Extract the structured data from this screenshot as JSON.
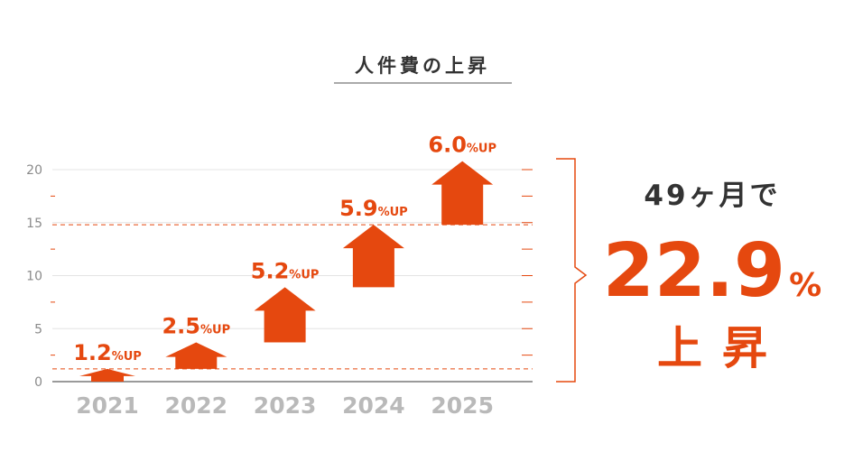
{
  "chart_data": {
    "type": "bar",
    "title": "人件費の上昇",
    "categories": [
      "2021",
      "2022",
      "2023",
      "2024",
      "2025"
    ],
    "values": [
      1.2,
      2.5,
      5.2,
      5.9,
      6.0
    ],
    "value_unit": "%UP",
    "yticks": [
      0,
      5,
      10,
      15,
      20
    ],
    "ylim": [
      0,
      22
    ],
    "grid": true,
    "bar_color": "#e5480f",
    "summary": {
      "prefix": "49ヶ月で",
      "value": "22.9",
      "unit": "%",
      "suffix": "上昇"
    }
  }
}
